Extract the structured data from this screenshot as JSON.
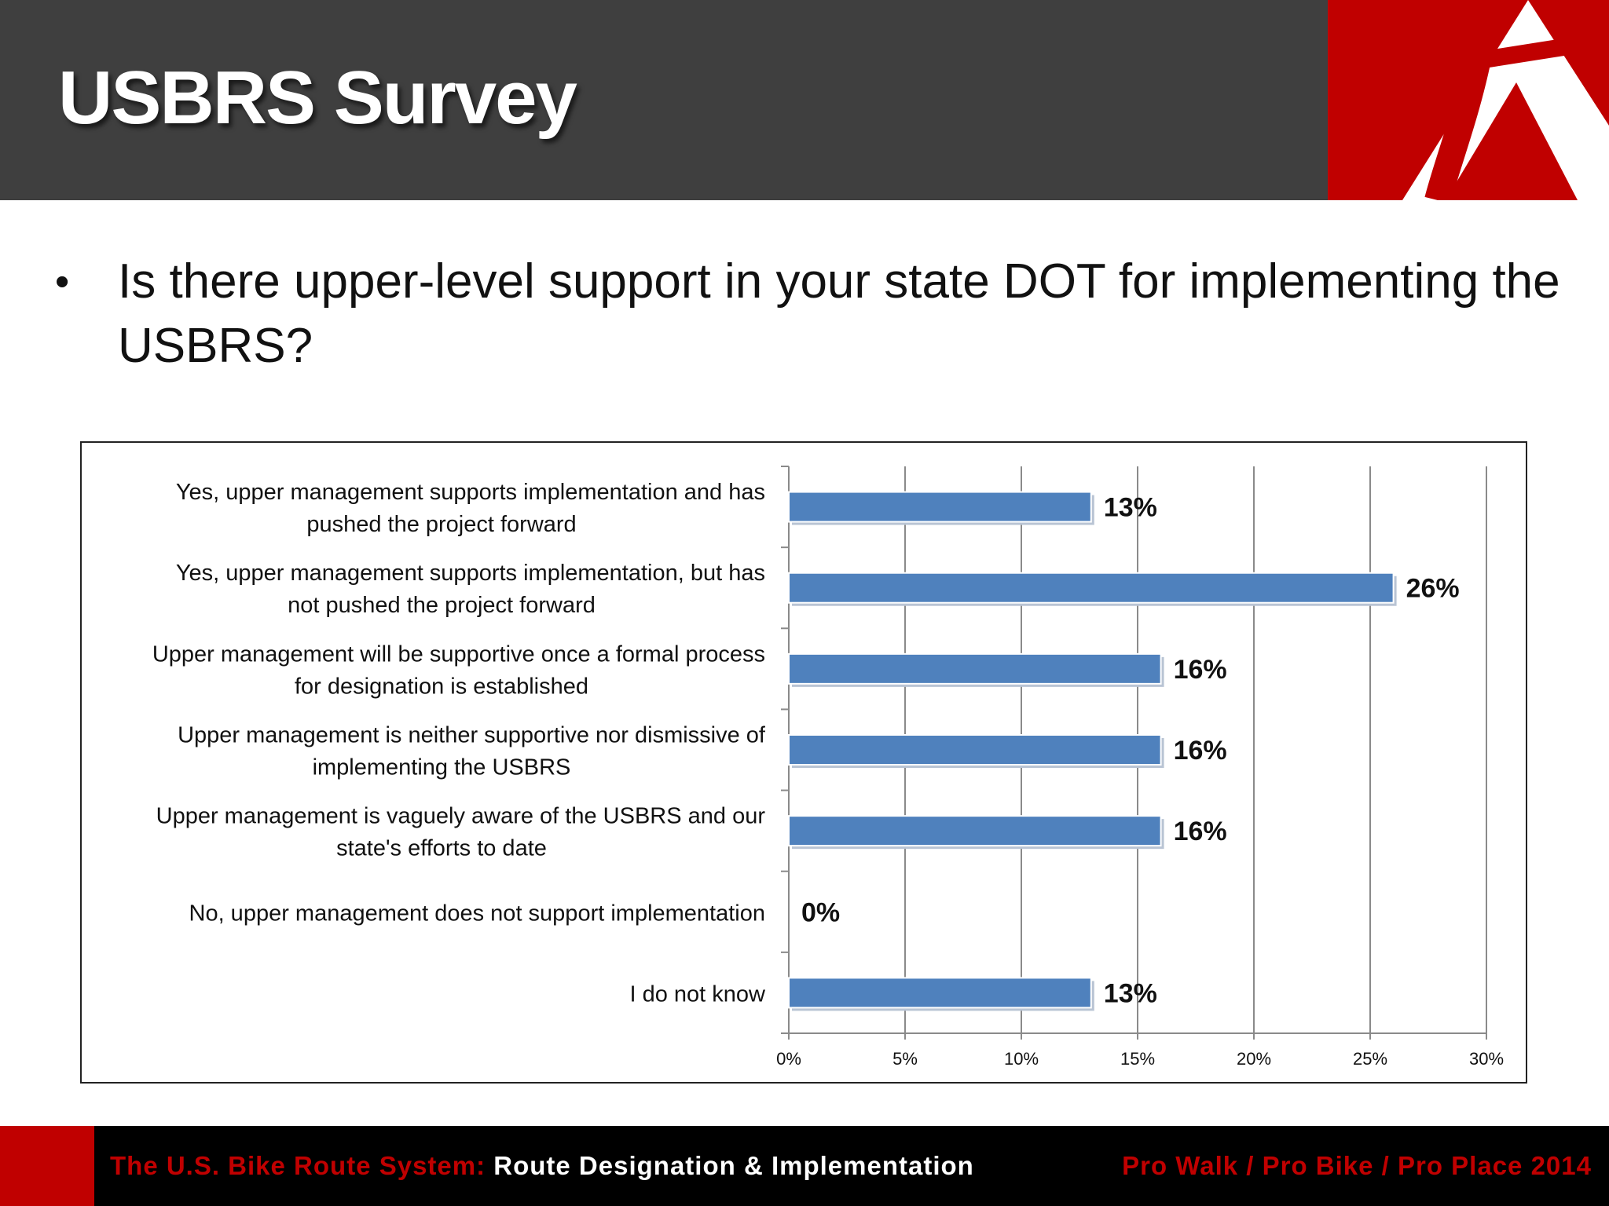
{
  "slide": {
    "title": "USBRS Survey",
    "bullet_symbol": "•",
    "question": "Is there upper-level support in your state DOT for implementing the USBRS?"
  },
  "footer": {
    "left_red": "The U.S. Bike Route System:",
    "left_white": " Route Designation & Implementation",
    "right": "Pro Walk / Pro Bike / Pro Place 2014"
  },
  "colors": {
    "header_bg": "#3f3f3f",
    "accent_red": "#c00000",
    "bar_fill": "#4f81bd",
    "footer_bg": "#000000"
  },
  "chart_data": {
    "type": "bar",
    "orientation": "horizontal",
    "categories": [
      [
        "Yes, upper management supports implementation and has",
        "pushed the project forward"
      ],
      [
        "Yes, upper management supports implementation, but has",
        "not pushed the project forward"
      ],
      [
        "Upper management will be supportive once a formal process",
        "for designation is established"
      ],
      [
        "Upper management is neither supportive nor dismissive of",
        "implementing the USBRS"
      ],
      [
        "Upper management is vaguely aware of the USBRS and our",
        "state's efforts to date"
      ],
      [
        "No, upper management does not support implementation"
      ],
      [
        "I do not know"
      ]
    ],
    "values": [
      13,
      26,
      16,
      16,
      16,
      0,
      13
    ],
    "data_labels": [
      "13%",
      "26%",
      "16%",
      "16%",
      "16%",
      "0%",
      "13%"
    ],
    "xlim": [
      0,
      30
    ],
    "x_ticks": [
      0,
      5,
      10,
      15,
      20,
      25,
      30
    ],
    "x_tick_labels": [
      "0%",
      "5%",
      "10%",
      "15%",
      "20%",
      "25%",
      "30%"
    ],
    "grid": "vertical",
    "legend": "none"
  }
}
